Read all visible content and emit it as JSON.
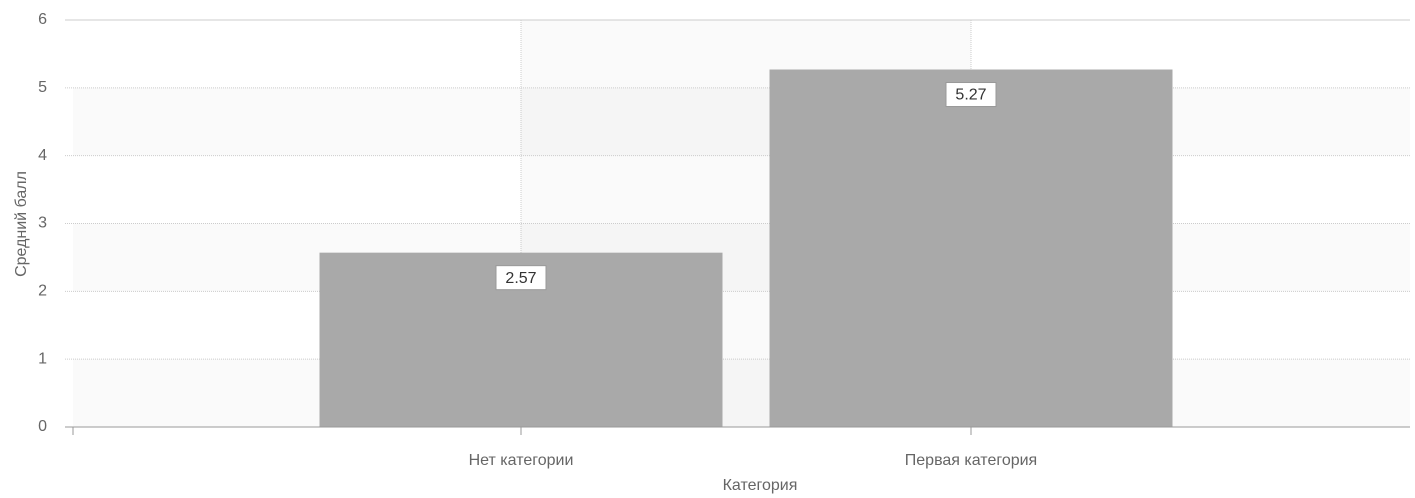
{
  "chart_data": {
    "type": "bar",
    "categories": [
      "Нет категории",
      "Первая категория"
    ],
    "values": [
      2.57,
      5.27
    ],
    "color": "#a9a9a9",
    "xlabel": "Категория",
    "ylabel": "Средний балл",
    "ylim": [
      0,
      6
    ],
    "yticks": [
      0,
      1,
      2,
      3,
      4,
      5,
      6
    ],
    "grid": true
  }
}
